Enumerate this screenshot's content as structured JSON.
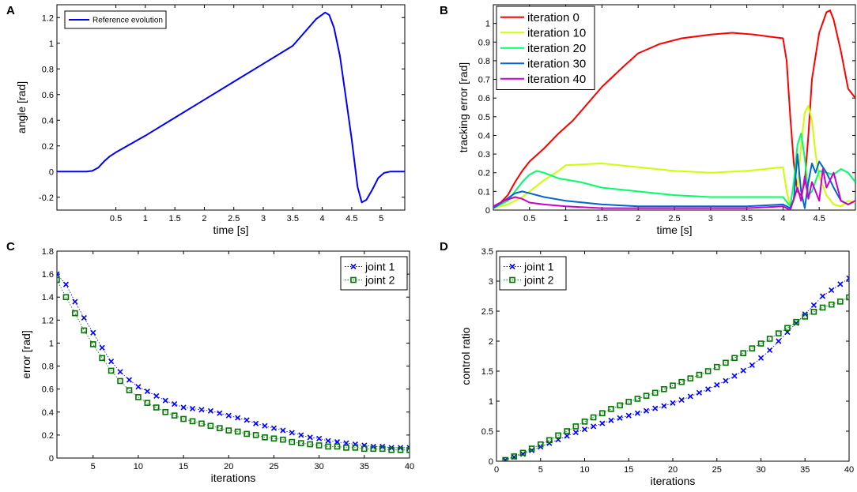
{
  "chart_data": [
    {
      "panel": "A",
      "type": "line",
      "xlabel": "time [s]",
      "ylabel": "angle [rad]",
      "xlim": [
        -0.5,
        5.4
      ],
      "ylim": [
        -0.3,
        1.3
      ],
      "xticks": [
        0.5,
        1,
        1.5,
        2,
        2.5,
        3,
        3.5,
        4,
        4.5,
        5
      ],
      "yticks": [
        -0.2,
        0,
        0.2,
        0.4,
        0.6,
        0.8,
        1,
        1.2
      ],
      "legend_position": "top-left",
      "series": [
        {
          "name": "Reference evolution",
          "color": "#0000ff",
          "x": [
            -0.5,
            0.0,
            0.1,
            0.2,
            0.3,
            0.4,
            0.5,
            1.0,
            1.5,
            2.0,
            2.5,
            3.0,
            3.5,
            3.9,
            4.05,
            4.12,
            4.2,
            4.3,
            4.4,
            4.5,
            4.6,
            4.67,
            4.75,
            4.85,
            4.95,
            5.05,
            5.15,
            5.4
          ],
          "y": [
            0,
            0,
            0.005,
            0.03,
            0.08,
            0.12,
            0.15,
            0.28,
            0.42,
            0.56,
            0.7,
            0.84,
            0.98,
            1.19,
            1.24,
            1.22,
            1.12,
            0.9,
            0.58,
            0.25,
            -0.12,
            -0.24,
            -0.22,
            -0.14,
            -0.05,
            -0.01,
            0,
            0
          ]
        }
      ]
    },
    {
      "panel": "B",
      "type": "line",
      "xlabel": "time [s]",
      "ylabel": "tracking error [rad]",
      "xlim": [
        0,
        5
      ],
      "ylim": [
        0,
        1.1
      ],
      "xticks": [
        0.5,
        1,
        1.5,
        2,
        2.5,
        3,
        3.5,
        4,
        4.5
      ],
      "yticks": [
        0,
        0.1,
        0.2,
        0.3,
        0.4,
        0.5,
        0.6,
        0.7,
        0.8,
        0.9,
        1
      ],
      "legend_position": "top-left",
      "series": [
        {
          "name": "iteration 0",
          "color": "#ff0000",
          "x": [
            0,
            0.1,
            0.2,
            0.3,
            0.4,
            0.5,
            0.7,
            0.9,
            1.1,
            1.3,
            1.5,
            1.8,
            2.0,
            2.3,
            2.6,
            3.0,
            3.3,
            3.6,
            3.8,
            4.0,
            4.05,
            4.1,
            4.15,
            4.2,
            4.25,
            4.3,
            4.35,
            4.4,
            4.5,
            4.6,
            4.65,
            4.7,
            4.8,
            4.9,
            5.0
          ],
          "y": [
            0.02,
            0.04,
            0.08,
            0.15,
            0.21,
            0.26,
            0.33,
            0.41,
            0.48,
            0.57,
            0.66,
            0.77,
            0.84,
            0.89,
            0.92,
            0.94,
            0.95,
            0.94,
            0.93,
            0.92,
            0.8,
            0.5,
            0.25,
            0.1,
            0.08,
            0.15,
            0.4,
            0.7,
            0.95,
            1.06,
            1.07,
            1.02,
            0.85,
            0.65,
            0.6
          ]
        },
        {
          "name": "iteration 10",
          "color": "#ccff00",
          "x": [
            0,
            0.2,
            0.4,
            0.5,
            0.7,
            0.9,
            1.0,
            1.5,
            2.0,
            2.5,
            3.0,
            3.5,
            4.0,
            4.05,
            4.1,
            4.15,
            4.2,
            4.25,
            4.3,
            4.35,
            4.4,
            4.45,
            4.5,
            4.6,
            4.7,
            4.8,
            4.9,
            5.0
          ],
          "y": [
            0.01,
            0.03,
            0.07,
            0.1,
            0.16,
            0.21,
            0.24,
            0.25,
            0.23,
            0.21,
            0.2,
            0.21,
            0.23,
            0.1,
            0.02,
            0.05,
            0.12,
            0.35,
            0.52,
            0.56,
            0.48,
            0.3,
            0.18,
            0.08,
            0.03,
            0.02,
            0.05,
            0.04
          ]
        },
        {
          "name": "iteration 20",
          "color": "#00ff66",
          "x": [
            0,
            0.2,
            0.4,
            0.5,
            0.6,
            0.7,
            0.9,
            1.2,
            1.5,
            2.0,
            2.5,
            3.0,
            3.5,
            4.0,
            4.1,
            4.15,
            4.2,
            4.25,
            4.3,
            4.35,
            4.4,
            4.5,
            4.6,
            4.7,
            4.8,
            4.9,
            5.0
          ],
          "y": [
            0.01,
            0.05,
            0.15,
            0.19,
            0.21,
            0.2,
            0.17,
            0.15,
            0.12,
            0.1,
            0.08,
            0.07,
            0.07,
            0.07,
            0.02,
            0.15,
            0.35,
            0.41,
            0.28,
            0.08,
            0.1,
            0.21,
            0.2,
            0.19,
            0.22,
            0.2,
            0.15
          ]
        },
        {
          "name": "iteration 30",
          "color": "#0066cc",
          "x": [
            0,
            0.15,
            0.3,
            0.4,
            0.5,
            0.7,
            1.0,
            1.5,
            2.0,
            2.5,
            3.0,
            3.5,
            4.0,
            4.1,
            4.15,
            4.2,
            4.25,
            4.3,
            4.35,
            4.4,
            4.45,
            4.5,
            4.6,
            4.7,
            4.8,
            4.9,
            5.0
          ],
          "y": [
            0.01,
            0.05,
            0.09,
            0.1,
            0.09,
            0.07,
            0.05,
            0.03,
            0.02,
            0.02,
            0.02,
            0.02,
            0.03,
            0.01,
            0.06,
            0.3,
            0.1,
            0.01,
            0.15,
            0.25,
            0.2,
            0.26,
            0.2,
            0.12,
            0.05,
            0.03,
            0.05
          ]
        },
        {
          "name": "iteration 40",
          "color": "#cc00cc",
          "x": [
            0,
            0.15,
            0.3,
            0.4,
            0.5,
            0.7,
            1.0,
            1.5,
            2.0,
            2.5,
            3.0,
            3.5,
            4.0,
            4.1,
            4.2,
            4.25,
            4.3,
            4.35,
            4.4,
            4.5,
            4.55,
            4.6,
            4.7,
            4.8,
            4.9,
            5.0
          ],
          "y": [
            0.02,
            0.05,
            0.07,
            0.06,
            0.04,
            0.03,
            0.02,
            0.01,
            0.01,
            0.01,
            0.01,
            0.01,
            0.02,
            0.0,
            0.12,
            0.05,
            0.18,
            0.06,
            0.15,
            0.05,
            0.22,
            0.12,
            0.2,
            0.05,
            0.03,
            0.05
          ]
        }
      ]
    },
    {
      "panel": "C",
      "type": "scatter",
      "xlabel": "iterations",
      "ylabel": "error [rad]",
      "xlim": [
        1,
        40
      ],
      "ylim": [
        0,
        1.8
      ],
      "xticks": [
        5,
        10,
        15,
        20,
        25,
        30,
        35,
        40
      ],
      "yticks": [
        0,
        0.2,
        0.4,
        0.6,
        0.8,
        1,
        1.2,
        1.4,
        1.6,
        1.8
      ],
      "legend_position": "top-right",
      "series": [
        {
          "name": "joint 1",
          "color": "#0000ff",
          "marker": "x",
          "x": [
            1,
            2,
            3,
            4,
            5,
            6,
            7,
            8,
            9,
            10,
            11,
            12,
            13,
            14,
            15,
            16,
            17,
            18,
            19,
            20,
            21,
            22,
            23,
            24,
            25,
            26,
            27,
            28,
            29,
            30,
            31,
            32,
            33,
            34,
            35,
            36,
            37,
            38,
            39,
            40
          ],
          "y": [
            1.6,
            1.51,
            1.36,
            1.22,
            1.09,
            0.96,
            0.84,
            0.75,
            0.68,
            0.62,
            0.58,
            0.54,
            0.5,
            0.47,
            0.44,
            0.43,
            0.42,
            0.41,
            0.39,
            0.37,
            0.35,
            0.33,
            0.3,
            0.28,
            0.26,
            0.24,
            0.22,
            0.2,
            0.18,
            0.17,
            0.15,
            0.14,
            0.13,
            0.12,
            0.11,
            0.1,
            0.1,
            0.09,
            0.09,
            0.09
          ]
        },
        {
          "name": "joint 2",
          "color": "#007700",
          "marker": "square",
          "x": [
            1,
            2,
            3,
            4,
            5,
            6,
            7,
            8,
            9,
            10,
            11,
            12,
            13,
            14,
            15,
            16,
            17,
            18,
            19,
            20,
            21,
            22,
            23,
            24,
            25,
            26,
            27,
            28,
            29,
            30,
            31,
            32,
            33,
            34,
            35,
            36,
            37,
            38,
            39,
            40
          ],
          "y": [
            1.55,
            1.4,
            1.26,
            1.11,
            0.99,
            0.87,
            0.76,
            0.67,
            0.59,
            0.53,
            0.48,
            0.44,
            0.4,
            0.37,
            0.34,
            0.32,
            0.3,
            0.28,
            0.26,
            0.24,
            0.23,
            0.21,
            0.2,
            0.18,
            0.17,
            0.16,
            0.14,
            0.13,
            0.12,
            0.11,
            0.1,
            0.1,
            0.09,
            0.09,
            0.08,
            0.08,
            0.08,
            0.07,
            0.07,
            0.07
          ]
        }
      ]
    },
    {
      "panel": "D",
      "type": "scatter",
      "xlabel": "iterations",
      "ylabel": "control ratio",
      "xlim": [
        0,
        40
      ],
      "ylim": [
        0,
        3.5
      ],
      "xticks": [
        0,
        5,
        10,
        15,
        20,
        25,
        30,
        35,
        40
      ],
      "yticks": [
        0,
        0.5,
        1,
        1.5,
        2,
        2.5,
        3,
        3.5
      ],
      "legend_position": "top-left",
      "series": [
        {
          "name": "joint 1",
          "color": "#0000ff",
          "marker": "x",
          "x": [
            1,
            2,
            3,
            4,
            5,
            6,
            7,
            8,
            9,
            10,
            11,
            12,
            13,
            14,
            15,
            16,
            17,
            18,
            19,
            20,
            21,
            22,
            23,
            24,
            25,
            26,
            27,
            28,
            29,
            30,
            31,
            32,
            33,
            34,
            35,
            36,
            37,
            38,
            39,
            40
          ],
          "y": [
            0.02,
            0.07,
            0.12,
            0.18,
            0.24,
            0.3,
            0.36,
            0.42,
            0.48,
            0.53,
            0.58,
            0.63,
            0.68,
            0.72,
            0.76,
            0.8,
            0.84,
            0.88,
            0.92,
            0.97,
            1.02,
            1.08,
            1.14,
            1.2,
            1.27,
            1.34,
            1.42,
            1.51,
            1.6,
            1.72,
            1.85,
            2.0,
            2.15,
            2.3,
            2.45,
            2.6,
            2.75,
            2.85,
            2.95,
            3.05
          ]
        },
        {
          "name": "joint 2",
          "color": "#007700",
          "marker": "square",
          "x": [
            1,
            2,
            3,
            4,
            5,
            6,
            7,
            8,
            9,
            10,
            11,
            12,
            13,
            14,
            15,
            16,
            17,
            18,
            19,
            20,
            21,
            22,
            23,
            24,
            25,
            26,
            27,
            28,
            29,
            30,
            31,
            32,
            33,
            34,
            35,
            36,
            37,
            38,
            39,
            40
          ],
          "y": [
            0.02,
            0.08,
            0.14,
            0.21,
            0.28,
            0.35,
            0.43,
            0.5,
            0.58,
            0.66,
            0.73,
            0.8,
            0.87,
            0.93,
            0.99,
            1.04,
            1.09,
            1.14,
            1.2,
            1.26,
            1.32,
            1.38,
            1.44,
            1.5,
            1.57,
            1.64,
            1.72,
            1.8,
            1.88,
            1.96,
            2.04,
            2.13,
            2.22,
            2.32,
            2.41,
            2.49,
            2.56,
            2.61,
            2.66,
            2.73
          ]
        }
      ]
    }
  ]
}
